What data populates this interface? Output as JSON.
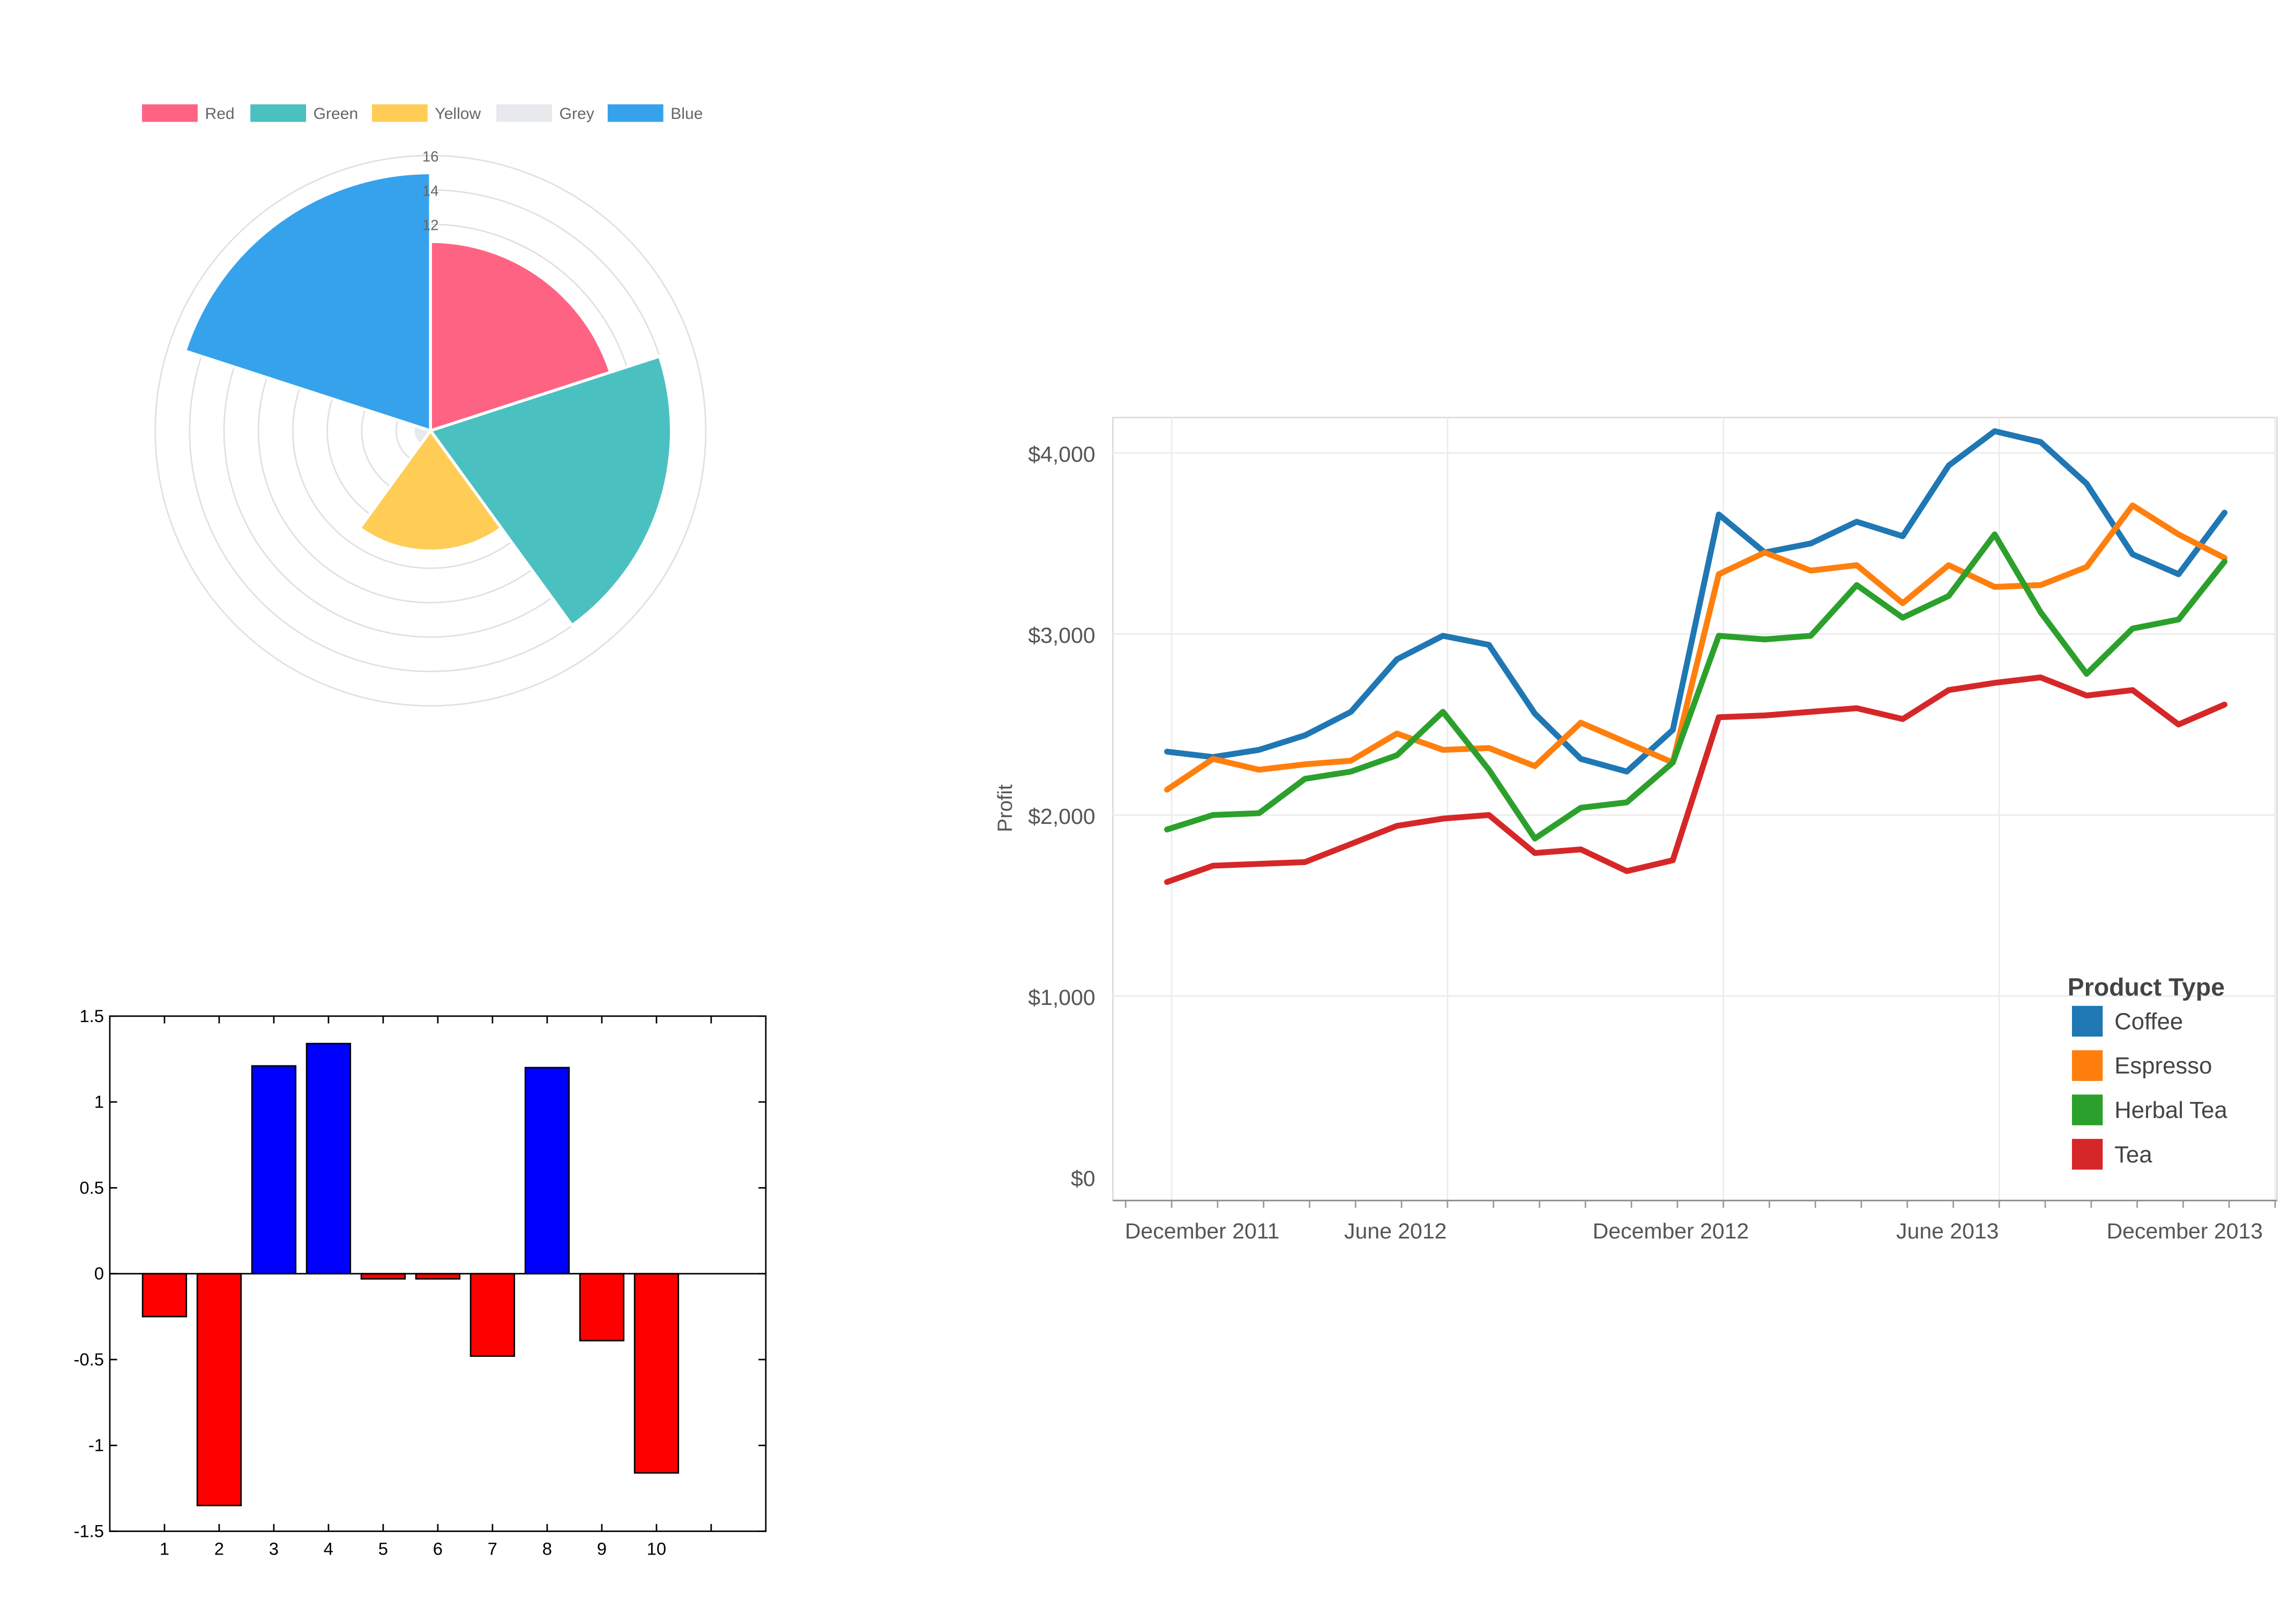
{
  "chart_data": [
    {
      "type": "polarArea",
      "legend": [
        {
          "label": "Red",
          "color": "#ff6384"
        },
        {
          "label": "Green",
          "color": "#4bc0c0"
        },
        {
          "label": "Yellow",
          "color": "#ffcd56"
        },
        {
          "label": "Grey",
          "color": "#e7e9ed"
        },
        {
          "label": "Blue",
          "color": "#36a2eb"
        }
      ],
      "values": [
        11,
        14,
        7,
        1,
        15
      ],
      "radial_ticks": [
        16,
        14,
        12
      ],
      "r_max": 16,
      "r_step": 2,
      "grid": true,
      "legend_position": "top"
    },
    {
      "type": "bar",
      "categories": [
        "1",
        "2",
        "3",
        "4",
        "5",
        "6",
        "7",
        "8",
        "9",
        "10"
      ],
      "values": [
        -0.25,
        -1.35,
        1.21,
        1.34,
        -0.03,
        -0.03,
        -0.48,
        1.2,
        -0.39,
        -1.16
      ],
      "positive_color": "#0000ff",
      "negative_color": "#ff0000",
      "ylim": [
        -1.5,
        1.5
      ],
      "y_ticks": [
        "1.5",
        "1",
        "0.5",
        "0",
        "-0.5",
        "-1",
        "-1.5"
      ],
      "xlim": [
        0,
        12
      ]
    },
    {
      "type": "line",
      "ylabel": "Profit",
      "x_start": "2011-11",
      "x_ticks": [
        "December 2011",
        "June 2012",
        "December 2012",
        "June 2013",
        "December 2013"
      ],
      "y_ticks": [
        "$4,000",
        "$3,000",
        "$2,000",
        "$1,000",
        "$0"
      ],
      "ylim": [
        0,
        4300
      ],
      "grid": true,
      "legend_title": "Product Type",
      "legend_position": "bottom-right",
      "series": [
        {
          "name": "Coffee",
          "color": "#1f77b4",
          "values": [
            2350,
            2320,
            2360,
            2440,
            2570,
            2860,
            2990,
            2940,
            2560,
            2310,
            2240,
            2470,
            3660,
            3450,
            3500,
            3620,
            3540,
            3930,
            4120,
            4060,
            3830,
            3440,
            3330,
            3670
          ]
        },
        {
          "name": "Espresso",
          "color": "#ff7f0e",
          "values": [
            2140,
            2310,
            2250,
            2280,
            2300,
            2450,
            2360,
            2370,
            2270,
            2510,
            2400,
            2290,
            3330,
            3450,
            3350,
            3380,
            3170,
            3380,
            3260,
            3270,
            3370,
            3710,
            3550,
            3420
          ]
        },
        {
          "name": "Herbal Tea",
          "color": "#2ca02c",
          "values": [
            1920,
            2000,
            2010,
            2200,
            2240,
            2330,
            2570,
            2250,
            1870,
            2040,
            2070,
            2290,
            2990,
            2970,
            2990,
            3270,
            3090,
            3210,
            3550,
            3120,
            2780,
            3030,
            3080,
            3400
          ]
        },
        {
          "name": "Tea",
          "color": "#d62728",
          "values": [
            1630,
            1720,
            1730,
            1740,
            1840,
            1940,
            1980,
            2000,
            1790,
            1810,
            1690,
            1750,
            2540,
            2550,
            2570,
            2590,
            2530,
            2690,
            2730,
            2760,
            2660,
            2690,
            2500,
            2610
          ]
        }
      ]
    }
  ]
}
